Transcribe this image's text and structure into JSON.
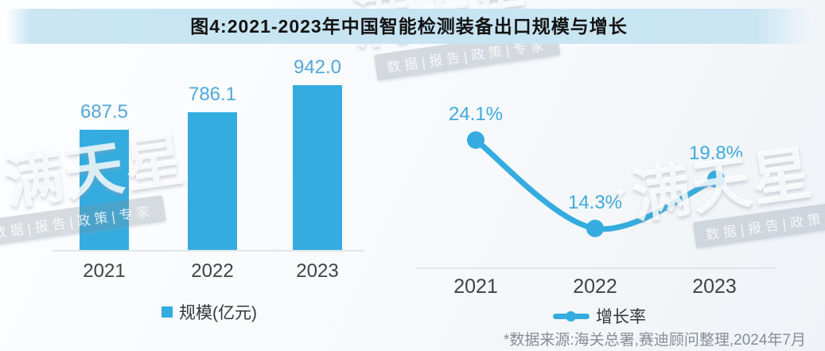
{
  "title": "图4:2021-2023年中国智能检测装备出口规模与增长",
  "footnote": "*数据来源:海关总署,赛迪顾问整理,2024年7月",
  "watermark": {
    "brand": "满天星",
    "tagline": "数据|报告|政策|专家",
    "sparkle": "✦"
  },
  "colors": {
    "accent": "#35ACDF",
    "bar_value_label": "#52A7DB",
    "line_value_label": "#3FA9DE",
    "title_band": "#C6E4F2",
    "axis": "#E1E5E9",
    "tick": "#3F4347",
    "footnote": "#878E96"
  },
  "chart_data": [
    {
      "type": "bar",
      "categories": [
        "2021",
        "2022",
        "2023"
      ],
      "values": [
        687.5,
        786.1,
        942.0
      ],
      "value_labels": [
        "687.5",
        "786.1",
        "942.0"
      ],
      "legend": "规模(亿元)",
      "unit": "亿元",
      "ylim": [
        0,
        1000
      ],
      "grid": false,
      "legend_position": "bottom"
    },
    {
      "type": "line",
      "categories": [
        "2021",
        "2022",
        "2023"
      ],
      "values": [
        24.1,
        14.3,
        19.8
      ],
      "value_labels": [
        "24.1%",
        "14.3%",
        "19.8%"
      ],
      "legend": "增长率",
      "unit": "%",
      "ylim": [
        10,
        28
      ],
      "grid": false,
      "legend_position": "bottom"
    }
  ]
}
